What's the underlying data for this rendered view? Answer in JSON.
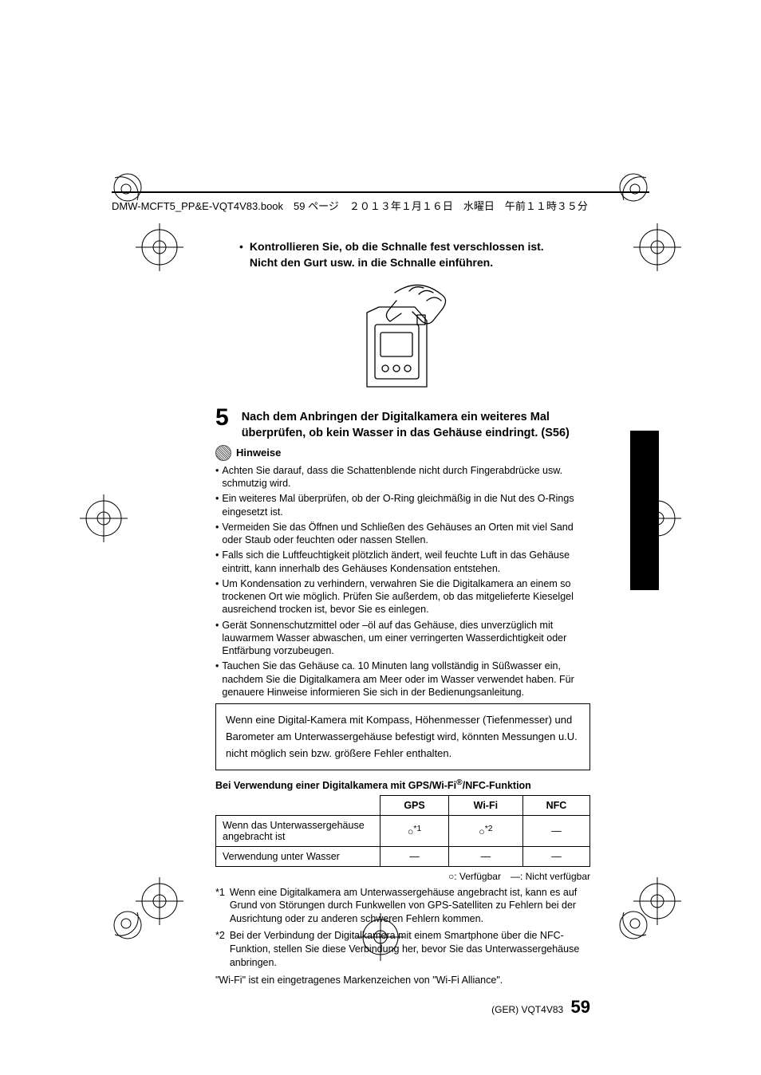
{
  "header": {
    "text": "DMW-MCFT5_PP&E-VQT4V83.book　59 ページ　２０１３年１月１６日　水曜日　午前１１時３５分"
  },
  "bullet": {
    "line1": "Kontrollieren Sie, ob die Schnalle fest verschlossen ist.",
    "line2": "Nicht den Gurt usw. in die Schnalle einführen."
  },
  "step": {
    "num": "5",
    "text": "Nach dem Anbringen der Digitalkamera ein weiteres Mal überprüfen, ob kein Wasser in das Gehäuse eindringt. (S56)"
  },
  "hinweise_label": "Hinweise",
  "notes": [
    "Achten Sie darauf, dass die Schattenblende nicht durch Fingerabdrücke usw. schmutzig wird.",
    "Ein weiteres Mal überprüfen, ob der O-Ring gleichmäßig in die Nut des O-Rings eingesetzt ist.",
    "Vermeiden Sie das Öffnen und Schließen des Gehäuses an Orten mit viel Sand oder Staub oder feuchten oder nassen Stellen.",
    "Falls sich die Luftfeuchtigkeit plötzlich ändert, weil feuchte Luft in das Gehäuse eintritt, kann innerhalb des Gehäuses Kondensation entstehen.",
    "Um Kondensation zu verhindern, verwahren Sie die Digitalkamera an einem so trockenen Ort wie möglich. Prüfen Sie außerdem, ob das mitgelieferte Kieselgel ausreichend trocken ist, bevor Sie es einlegen.",
    "Gerät Sonnenschutzmittel oder –öl auf das Gehäuse, dies unverzüglich mit lauwarmem Wasser abwaschen, um einer verringerten Wasserdichtigkeit oder Entfärbung vorzubeugen.",
    "Tauchen Sie das Gehäuse ca. 10 Minuten lang vollständig in Süßwasser ein, nachdem Sie die Digitalkamera am Meer oder im Wasser verwendet haben. Für genauere Hinweise informieren Sie sich in der Bedienungsanleitung."
  ],
  "box_text": "Wenn eine Digital-Kamera mit Kompass, Höhenmesser (Tiefenmesser) und Barometer am Unterwassergehäuse befestigt wird, könnten Messungen u.U. nicht möglich sein bzw. größere Fehler enthalten.",
  "table": {
    "title_pre": "Bei Verwendung einer Digitalkamera mit GPS/Wi-Fi",
    "title_sup": "®",
    "title_post": "/NFC-Funktion",
    "headers": [
      "GPS",
      "Wi-Fi",
      "NFC"
    ],
    "rows": [
      {
        "label": "Wenn das Unterwassergehäuse angebracht ist",
        "cells": [
          "○*1",
          "○*2",
          "—"
        ]
      },
      {
        "label": "Verwendung unter Wasser",
        "cells": [
          "—",
          "—",
          "—"
        ]
      }
    ]
  },
  "legend": "○: Verfügbar　—: Nicht verfügbar",
  "asterisks": [
    {
      "mark": "*1",
      "text": "Wenn eine Digitalkamera am Unterwassergehäuse angebracht ist, kann es auf Grund von Störungen durch Funkwellen von GPS-Satelliten zu Fehlern bei der Ausrichtung oder zu anderen schweren Fehlern kommen."
    },
    {
      "mark": "*2",
      "text": "Bei der Verbindung der Digitalkamera mit einem Smartphone über die NFC-Funktion, stellen Sie diese Verbindung her, bevor Sie das Unterwassergehäuse anbringen."
    }
  ],
  "trademark": "\"Wi-Fi\" ist ein eingetragenes Markenzeichen von \"Wi-Fi Alliance\".",
  "footer": {
    "code": "(GER) VQT4V83",
    "page": "59"
  },
  "side_tab_color": "#000000"
}
